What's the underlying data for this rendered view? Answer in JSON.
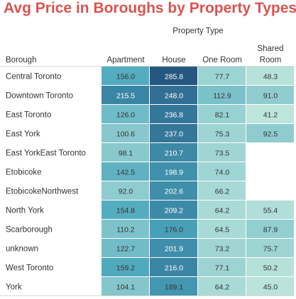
{
  "title": "Avg Price in Boroughs by Property Types",
  "chart_data": {
    "type": "heatmap",
    "title": "Avg Price in Boroughs by Property Types",
    "column_group_label": "Property Type",
    "row_header": "Borough",
    "columns": [
      "Apartment",
      "House",
      "One Room",
      "Shared Room"
    ],
    "rows": [
      {
        "label": "Central Toronto",
        "values": [
          156.0,
          285.8,
          77.7,
          48.3
        ]
      },
      {
        "label": "Downtown Toronto",
        "values": [
          215.5,
          248.0,
          112.9,
          91.0
        ]
      },
      {
        "label": "East Toronto",
        "values": [
          126.0,
          236.8,
          82.1,
          41.2
        ]
      },
      {
        "label": "East York",
        "values": [
          100.6,
          237.0,
          75.3,
          92.5
        ]
      },
      {
        "label": "East YorkEast Toronto",
        "values": [
          98.1,
          210.7,
          73.5,
          null
        ]
      },
      {
        "label": "Etobicoke",
        "values": [
          142.5,
          198.9,
          74.0,
          null
        ]
      },
      {
        "label": "EtobicokeNorthwest",
        "values": [
          92.0,
          202.6,
          66.2,
          null
        ]
      },
      {
        "label": "North York",
        "values": [
          154.8,
          209.2,
          64.2,
          55.4
        ]
      },
      {
        "label": "Scarborough",
        "values": [
          110.2,
          176.0,
          64.5,
          87.9
        ]
      },
      {
        "label": "unknown",
        "values": [
          122.7,
          201.9,
          73.2,
          75.7
        ]
      },
      {
        "label": "West Toronto",
        "values": [
          159.2,
          216.0,
          77.1,
          50.2
        ]
      },
      {
        "label": "York",
        "values": [
          104.1,
          189.1,
          64.2,
          45.0
        ]
      }
    ],
    "value_format": "0.0",
    "color_scale": {
      "low": "#bfe6dc",
      "mid": "#4ba7bd",
      "high": "#24547f",
      "min": 40,
      "max": 290
    }
  }
}
